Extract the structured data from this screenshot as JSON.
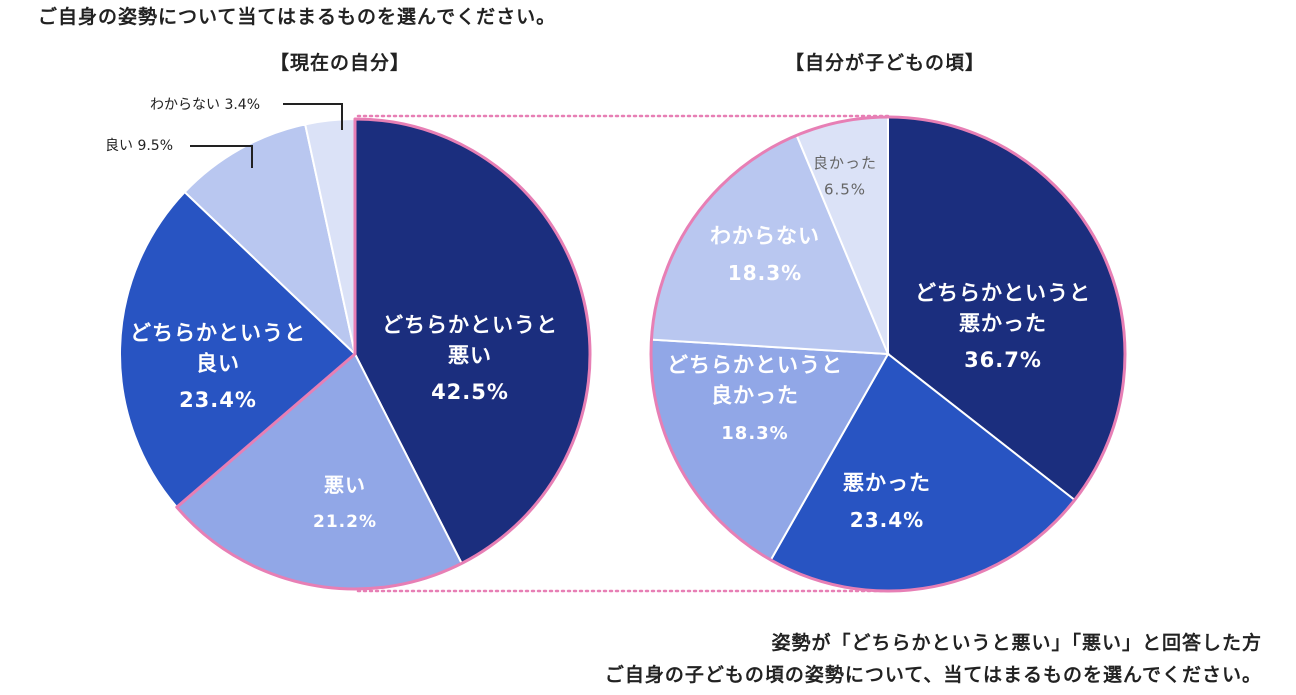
{
  "question": "ご自身の姿勢について当てはまるものを選んでください。",
  "footnote": {
    "line1": "姿勢が「どちらかというと悪い」「悪い」と回答した方",
    "line2": "ご自身の子どもの頃の姿勢について、当てはまるものを選んでください。"
  },
  "colors": {
    "highlight": "#e77fb5",
    "c1": "#1b2e7e",
    "c2": "#2854c2",
    "c3": "#91a7e7",
    "c4": "#b9c7f0",
    "c5": "#dbe2f7"
  },
  "chart_data": [
    {
      "type": "pie",
      "title": "【現在の自分】",
      "start": "12 o'clock",
      "direction": "clockwise",
      "slices": [
        {
          "lines": [
            "どちらかというと",
            "悪い"
          ],
          "label": "42.5%",
          "value": 42.5,
          "color": "#1b2e7e",
          "text_color": "#ffffff"
        },
        {
          "lines": [
            "悪い"
          ],
          "label": "21.2%",
          "value": 21.2,
          "color": "#91a7e7",
          "text_color": "#ffffff"
        },
        {
          "lines": [
            "どちらかというと",
            "良い"
          ],
          "label": "23.4%",
          "value": 23.4,
          "color": "#2854c2",
          "text_color": "#ffffff"
        },
        {
          "lines": [
            "良い 9.5%"
          ],
          "label": "",
          "value": 9.5,
          "color": "#b9c7f0",
          "text_color": "#222222",
          "callout": true
        },
        {
          "lines": [
            "わからない 3.4%"
          ],
          "label": "",
          "value": 3.4,
          "color": "#dbe2f7",
          "text_color": "#222222",
          "callout": true
        }
      ]
    },
    {
      "type": "pie",
      "title": "【自分が子どもの頃】",
      "start": "12 o'clock",
      "direction": "clockwise",
      "slices": [
        {
          "lines": [
            "どちらかというと",
            "悪かった"
          ],
          "label": "36.7%",
          "value": 36.7,
          "color": "#1b2e7e",
          "text_color": "#ffffff"
        },
        {
          "lines": [
            "悪かった"
          ],
          "label": "23.4%",
          "value": 23.4,
          "color": "#2854c2",
          "text_color": "#ffffff"
        },
        {
          "lines": [
            "どちらかというと",
            "良かった"
          ],
          "label": "18.3%",
          "value": 18.3,
          "color": "#91a7e7",
          "text_color": "#ffffff"
        },
        {
          "lines": [
            "わからない"
          ],
          "label": "18.3%",
          "value": 18.3,
          "color": "#b9c7f0",
          "text_color": "#ffffff"
        },
        {
          "lines": [
            "良かった"
          ],
          "label": "6.5%",
          "value": 6.5,
          "color": "#dbe2f7",
          "text_color": "#666666"
        }
      ]
    }
  ]
}
